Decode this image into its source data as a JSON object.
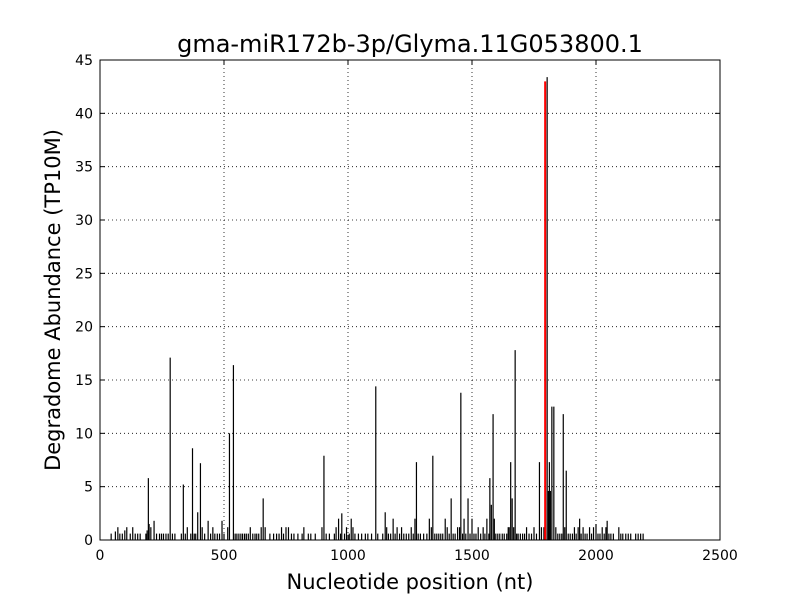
{
  "chart_data": {
    "type": "bar",
    "title": "gma-miR172b-3p/Glyma.11G053800.1",
    "xlabel": "Nucleotide position (nt)",
    "ylabel": "Degradome Abundance (TP10M)",
    "xlim": [
      0,
      2500
    ],
    "ylim": [
      0,
      45
    ],
    "xticks": [
      0,
      500,
      1000,
      1500,
      2000,
      2500
    ],
    "yticks": [
      0,
      5,
      10,
      15,
      20,
      25,
      30,
      35,
      40,
      45
    ],
    "grid": true,
    "series": [
      {
        "color": "#000000",
        "points": [
          [
            45,
            0.6
          ],
          [
            62,
            0.8
          ],
          [
            72,
            1.2
          ],
          [
            80,
            0.6
          ],
          [
            90,
            0.6
          ],
          [
            100,
            0.9
          ],
          [
            108,
            1.2
          ],
          [
            122,
            0.6
          ],
          [
            132,
            1.2
          ],
          [
            142,
            0.6
          ],
          [
            152,
            0.6
          ],
          [
            162,
            0.6
          ],
          [
            185,
            0.6
          ],
          [
            190,
            0.9
          ],
          [
            195,
            5.8
          ],
          [
            198,
            1.5
          ],
          [
            205,
            1.2
          ],
          [
            218,
            1.8
          ],
          [
            228,
            0.6
          ],
          [
            240,
            0.6
          ],
          [
            248,
            0.6
          ],
          [
            256,
            0.6
          ],
          [
            266,
            0.6
          ],
          [
            275,
            0.6
          ],
          [
            283,
            17.1
          ],
          [
            292,
            0.6
          ],
          [
            302,
            0.6
          ],
          [
            328,
            0.6
          ],
          [
            336,
            5.2
          ],
          [
            344,
            0.6
          ],
          [
            352,
            1.2
          ],
          [
            366,
            0.6
          ],
          [
            373,
            8.6
          ],
          [
            380,
            0.6
          ],
          [
            386,
            0.6
          ],
          [
            394,
            2.6
          ],
          [
            405,
            7.2
          ],
          [
            412,
            1.2
          ],
          [
            422,
            0.6
          ],
          [
            436,
            1.8
          ],
          [
            446,
            0.6
          ],
          [
            455,
            1.2
          ],
          [
            463,
            0.6
          ],
          [
            473,
            0.6
          ],
          [
            482,
            0.6
          ],
          [
            492,
            1.8
          ],
          [
            500,
            0.6
          ],
          [
            515,
            1.2
          ],
          [
            522,
            10.0
          ],
          [
            538,
            16.4
          ],
          [
            545,
            0.6
          ],
          [
            552,
            0.6
          ],
          [
            560,
            0.6
          ],
          [
            568,
            0.6
          ],
          [
            575,
            0.6
          ],
          [
            583,
            0.6
          ],
          [
            590,
            0.6
          ],
          [
            598,
            0.6
          ],
          [
            606,
            1.2
          ],
          [
            616,
            0.6
          ],
          [
            625,
            0.6
          ],
          [
            632,
            0.6
          ],
          [
            640,
            0.6
          ],
          [
            650,
            1.2
          ],
          [
            658,
            3.9
          ],
          [
            666,
            1.2
          ],
          [
            685,
            0.6
          ],
          [
            700,
            0.6
          ],
          [
            712,
            0.6
          ],
          [
            722,
            0.6
          ],
          [
            732,
            1.2
          ],
          [
            740,
            0.6
          ],
          [
            750,
            1.2
          ],
          [
            760,
            1.2
          ],
          [
            772,
            0.6
          ],
          [
            782,
            0.6
          ],
          [
            798,
            0.6
          ],
          [
            815,
            0.6
          ],
          [
            822,
            1.2
          ],
          [
            840,
            0.6
          ],
          [
            850,
            0.6
          ],
          [
            868,
            0.6
          ],
          [
            895,
            1.2
          ],
          [
            903,
            7.9
          ],
          [
            912,
            0.6
          ],
          [
            925,
            0.6
          ],
          [
            945,
            0.6
          ],
          [
            952,
            1.2
          ],
          [
            962,
            2.0
          ],
          [
            970,
            0.6
          ],
          [
            975,
            2.5
          ],
          [
            986,
            0.6
          ],
          [
            994,
            1.2
          ],
          [
            1005,
            0.6
          ],
          [
            1013,
            2.0
          ],
          [
            1020,
            1.2
          ],
          [
            1028,
            0.6
          ],
          [
            1042,
            0.6
          ],
          [
            1055,
            0.6
          ],
          [
            1070,
            0.6
          ],
          [
            1080,
            0.6
          ],
          [
            1095,
            0.6
          ],
          [
            1112,
            14.4
          ],
          [
            1120,
            0.6
          ],
          [
            1140,
            0.6
          ],
          [
            1150,
            2.6
          ],
          [
            1156,
            1.2
          ],
          [
            1163,
            0.6
          ],
          [
            1172,
            0.6
          ],
          [
            1182,
            2.0
          ],
          [
            1190,
            0.6
          ],
          [
            1198,
            1.2
          ],
          [
            1208,
            0.6
          ],
          [
            1216,
            1.2
          ],
          [
            1225,
            0.6
          ],
          [
            1235,
            0.6
          ],
          [
            1245,
            0.6
          ],
          [
            1255,
            1.2
          ],
          [
            1263,
            0.6
          ],
          [
            1270,
            2.0
          ],
          [
            1276,
            7.3
          ],
          [
            1283,
            0.6
          ],
          [
            1292,
            0.6
          ],
          [
            1305,
            0.6
          ],
          [
            1318,
            0.6
          ],
          [
            1328,
            2.0
          ],
          [
            1336,
            1.2
          ],
          [
            1342,
            7.9
          ],
          [
            1350,
            0.6
          ],
          [
            1358,
            0.6
          ],
          [
            1366,
            0.6
          ],
          [
            1374,
            0.6
          ],
          [
            1382,
            0.6
          ],
          [
            1392,
            2.0
          ],
          [
            1400,
            1.2
          ],
          [
            1408,
            0.6
          ],
          [
            1416,
            3.9
          ],
          [
            1424,
            0.6
          ],
          [
            1432,
            0.6
          ],
          [
            1442,
            1.2
          ],
          [
            1450,
            1.2
          ],
          [
            1455,
            13.8
          ],
          [
            1462,
            0.6
          ],
          [
            1468,
            2.0
          ],
          [
            1475,
            0.6
          ],
          [
            1484,
            3.9
          ],
          [
            1492,
            0.6
          ],
          [
            1500,
            2.0
          ],
          [
            1508,
            0.6
          ],
          [
            1516,
            0.6
          ],
          [
            1525,
            1.2
          ],
          [
            1535,
            0.6
          ],
          [
            1545,
            1.2
          ],
          [
            1552,
            0.6
          ],
          [
            1560,
            2.0
          ],
          [
            1568,
            0.6
          ],
          [
            1572,
            5.8
          ],
          [
            1578,
            3.3
          ],
          [
            1585,
            11.8
          ],
          [
            1590,
            2.0
          ],
          [
            1596,
            0.6
          ],
          [
            1604,
            0.6
          ],
          [
            1612,
            0.6
          ],
          [
            1622,
            0.6
          ],
          [
            1630,
            0.6
          ],
          [
            1640,
            0.6
          ],
          [
            1646,
            1.2
          ],
          [
            1650,
            1.2
          ],
          [
            1656,
            7.3
          ],
          [
            1662,
            3.9
          ],
          [
            1668,
            1.2
          ],
          [
            1674,
            17.8
          ],
          [
            1680,
            0.6
          ],
          [
            1686,
            0.6
          ],
          [
            1695,
            0.6
          ],
          [
            1704,
            0.6
          ],
          [
            1712,
            0.6
          ],
          [
            1720,
            1.2
          ],
          [
            1730,
            0.6
          ],
          [
            1740,
            0.6
          ],
          [
            1750,
            1.2
          ],
          [
            1760,
            0.6
          ],
          [
            1772,
            7.3
          ],
          [
            1780,
            1.2
          ],
          [
            1790,
            1.2
          ],
          [
            1795,
            3.3
          ],
          [
            1803,
            43.4
          ],
          [
            1808,
            4.6
          ],
          [
            1812,
            7.3
          ],
          [
            1816,
            4.6
          ],
          [
            1822,
            12.5
          ],
          [
            1830,
            12.5
          ],
          [
            1838,
            1.2
          ],
          [
            1846,
            0.6
          ],
          [
            1854,
            0.6
          ],
          [
            1862,
            0.6
          ],
          [
            1868,
            11.8
          ],
          [
            1874,
            1.2
          ],
          [
            1880,
            6.5
          ],
          [
            1888,
            0.6
          ],
          [
            1896,
            0.6
          ],
          [
            1905,
            0.6
          ],
          [
            1913,
            1.2
          ],
          [
            1920,
            0.6
          ],
          [
            1928,
            1.2
          ],
          [
            1934,
            2.0
          ],
          [
            1940,
            0.6
          ],
          [
            1948,
            1.2
          ],
          [
            1956,
            0.6
          ],
          [
            1964,
            0.6
          ],
          [
            1974,
            1.2
          ],
          [
            1982,
            0.6
          ],
          [
            1990,
            1.2
          ],
          [
            2000,
            1.5
          ],
          [
            2008,
            0.6
          ],
          [
            2016,
            0.6
          ],
          [
            2025,
            1.2
          ],
          [
            2033,
            0.6
          ],
          [
            2040,
            1.2
          ],
          [
            2045,
            1.8
          ],
          [
            2052,
            0.6
          ],
          [
            2060,
            0.6
          ],
          [
            2070,
            0.6
          ],
          [
            2092,
            1.2
          ],
          [
            2100,
            0.6
          ],
          [
            2108,
            0.6
          ],
          [
            2120,
            0.6
          ],
          [
            2130,
            0.6
          ],
          [
            2140,
            0.6
          ],
          [
            2160,
            0.6
          ],
          [
            2170,
            0.6
          ],
          [
            2180,
            0.6
          ],
          [
            2190,
            0.6
          ]
        ]
      },
      {
        "color": "#ff0000",
        "points": [
          [
            1795,
            43.0
          ]
        ]
      }
    ]
  }
}
